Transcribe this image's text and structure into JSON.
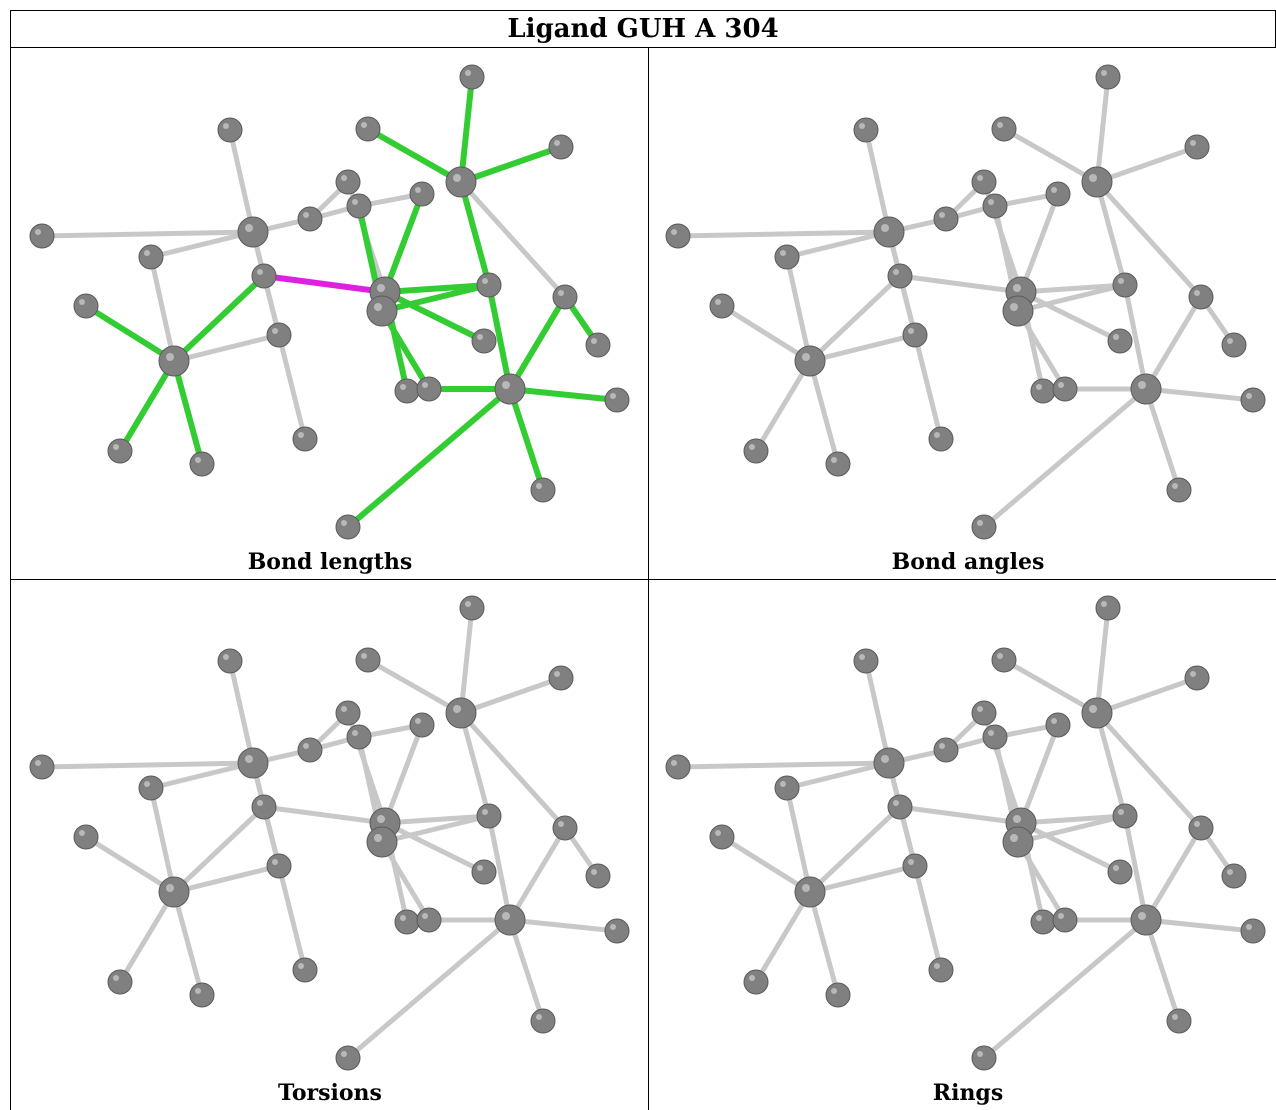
{
  "title": "Ligand GUH A 304",
  "panels": [
    {
      "caption": "Bond lengths"
    },
    {
      "caption": "Bond angles"
    },
    {
      "caption": "Torsions"
    },
    {
      "caption": "Rings"
    }
  ],
  "colors": {
    "atom": "#808080",
    "bond_default": "#c8c8c8",
    "bond_highlight": "#33cc33",
    "bond_outlier": "#e020e0"
  }
}
